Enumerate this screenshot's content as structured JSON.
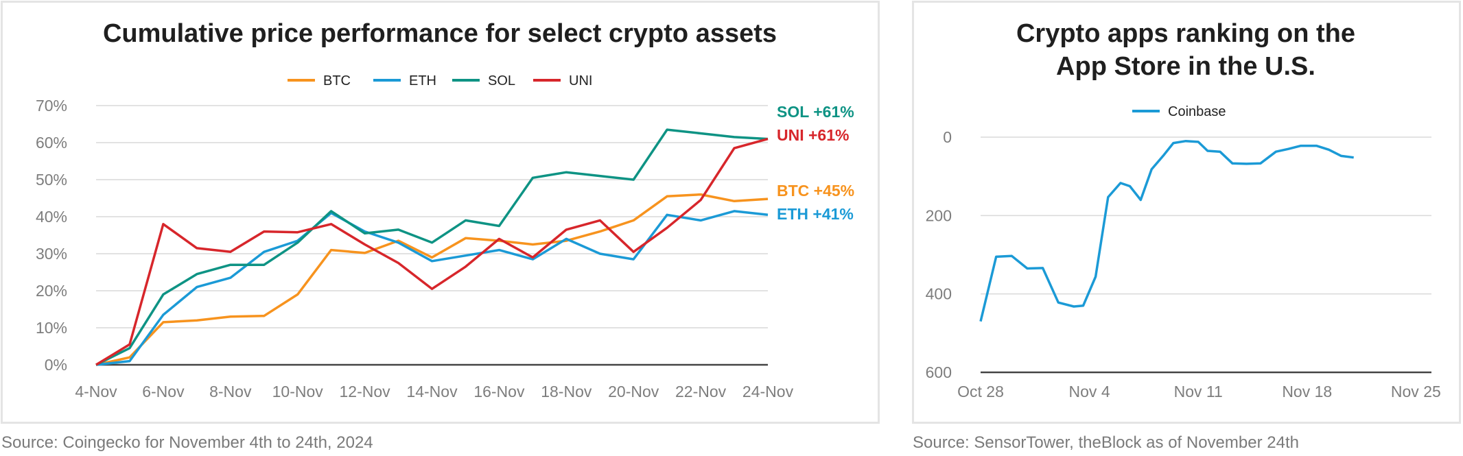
{
  "chart_data": [
    {
      "type": "line",
      "title": "Cumulative price performance for select crypto assets",
      "x": [
        "4-Nov",
        "5-Nov",
        "6-Nov",
        "7-Nov",
        "8-Nov",
        "9-Nov",
        "10-Nov",
        "11-Nov",
        "12-Nov",
        "13-Nov",
        "14-Nov",
        "15-Nov",
        "16-Nov",
        "17-Nov",
        "18-Nov",
        "19-Nov",
        "20-Nov",
        "21-Nov",
        "22-Nov",
        "23-Nov",
        "24-Nov"
      ],
      "x_tick_labels": [
        "4-Nov",
        "6-Nov",
        "8-Nov",
        "10-Nov",
        "12-Nov",
        "14-Nov",
        "16-Nov",
        "18-Nov",
        "20-Nov",
        "22-Nov",
        "24-Nov"
      ],
      "y_tick_labels": [
        "0%",
        "10%",
        "20%",
        "30%",
        "40%",
        "50%",
        "60%",
        "70%"
      ],
      "ylim": [
        0,
        70
      ],
      "grid": true,
      "legend_position": "top",
      "series": [
        {
          "name": "BTC",
          "color": "#f7931e",
          "values": [
            0,
            2,
            11.5,
            12,
            13,
            13.2,
            19,
            31,
            30.2,
            33.5,
            29,
            34.2,
            33.5,
            32.5,
            33.5,
            36,
            39,
            45.5,
            46,
            44.2,
            44.8
          ]
        },
        {
          "name": "ETH",
          "color": "#1b9ad6",
          "values": [
            0,
            1,
            13.5,
            21,
            23.5,
            30.5,
            33.5,
            41,
            36,
            33,
            28,
            29.5,
            31,
            28.5,
            34,
            30,
            28.5,
            40.5,
            39,
            41.5,
            40.5
          ]
        },
        {
          "name": "SOL",
          "color": "#0e9384",
          "values": [
            0,
            4.5,
            19,
            24.5,
            27,
            27,
            33,
            41.5,
            35.5,
            36.5,
            33,
            39,
            37.5,
            50.5,
            52,
            51,
            50,
            63.5,
            62.5,
            61.5,
            61
          ]
        },
        {
          "name": "UNI",
          "color": "#d7262b",
          "values": [
            0,
            5.5,
            38,
            31.5,
            30.5,
            36,
            35.8,
            38,
            32.5,
            27.5,
            20.5,
            26.5,
            34,
            29,
            36.5,
            39,
            30.5,
            37,
            44.5,
            58.5,
            61
          ]
        }
      ],
      "end_labels": [
        {
          "series": "SOL",
          "text": "SOL +61%"
        },
        {
          "series": "UNI",
          "text": "UNI +61%"
        },
        {
          "series": "BTC",
          "text": "BTC +45%"
        },
        {
          "series": "ETH",
          "text": "ETH +41%"
        }
      ],
      "source": "Source: Coingecko for November 4th to 24th, 2024"
    },
    {
      "type": "line",
      "title": "Crypto apps ranking on the App Store in the U.S.",
      "title_lines": [
        "Crypto apps ranking on the",
        "App Store in the U.S."
      ],
      "x_tick_labels": [
        "Oct 28",
        "Nov 4",
        "Nov 11",
        "Nov 18",
        "Nov 25"
      ],
      "x_range": [
        0,
        29
      ],
      "y_tick_labels": [
        "0",
        "200",
        "400",
        "600"
      ],
      "ylim": [
        0,
        600
      ],
      "y_inverted": true,
      "grid": true,
      "legend_position": "top",
      "series": [
        {
          "name": "Coinbase",
          "color": "#1b9ad6",
          "x": [
            0,
            1,
            2,
            3,
            4,
            5,
            6,
            6.6,
            7.4,
            8.2,
            9,
            9.6,
            10.3,
            11,
            11.8,
            12.4,
            13.2,
            14,
            14.6,
            15.4,
            16.2,
            17.1,
            18,
            19,
            19.8,
            20.6,
            21.6,
            22.4,
            23.2,
            24,
            25,
            26,
            27,
            28,
            29
          ],
          "values": [
            470,
            305,
            303,
            335,
            334,
            422,
            432,
            430,
            356,
            153,
            117,
            125,
            160,
            82,
            45,
            15,
            10,
            12,
            35,
            37,
            67,
            68,
            67,
            37,
            30,
            22,
            22,
            32,
            48,
            52,
            null,
            null,
            null,
            null,
            null
          ]
        }
      ],
      "source": "Source: SensorTower, theBlock as of November 24th"
    }
  ]
}
